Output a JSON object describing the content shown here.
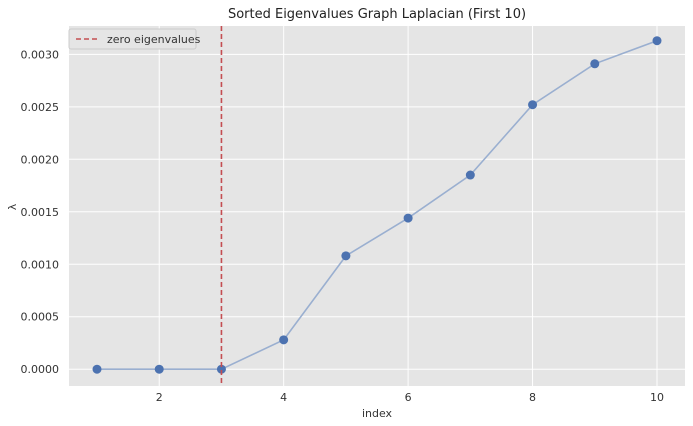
{
  "chart_data": {
    "type": "line",
    "title": "Sorted Eigenvalues Graph Laplacian (First 10)",
    "xlabel": "index",
    "ylabel": "λ",
    "xlim": [
      0.55,
      10.45
    ],
    "ylim": [
      -0.00016,
      0.00327
    ],
    "xticks": [
      2,
      4,
      6,
      8,
      10
    ],
    "xtick_labels": [
      "2",
      "4",
      "6",
      "8",
      "10"
    ],
    "yticks": [
      0.0,
      0.0005,
      0.001,
      0.0015,
      0.002,
      0.0025,
      0.003
    ],
    "ytick_labels": [
      "0.0000",
      "0.0005",
      "0.0010",
      "0.0015",
      "0.0020",
      "0.0025",
      "0.0030"
    ],
    "grid": true,
    "legend_position": "top-left",
    "series": [
      {
        "x": [
          1,
          2,
          3,
          4,
          5,
          6,
          7,
          8,
          9,
          10
        ],
        "values": [
          0.0,
          0.0,
          0.0,
          0.00028,
          0.00108,
          0.00144,
          0.00185,
          0.00252,
          0.00291,
          0.00313
        ],
        "line_color": "#9aafd0",
        "marker_color": "#4c72b0"
      }
    ],
    "vline": {
      "x": 3,
      "label": "zero eigenvalues",
      "color": "#c44e52",
      "style": "dashed"
    },
    "background_color": "#e5e5e5",
    "grid_color": "#ffffff"
  }
}
